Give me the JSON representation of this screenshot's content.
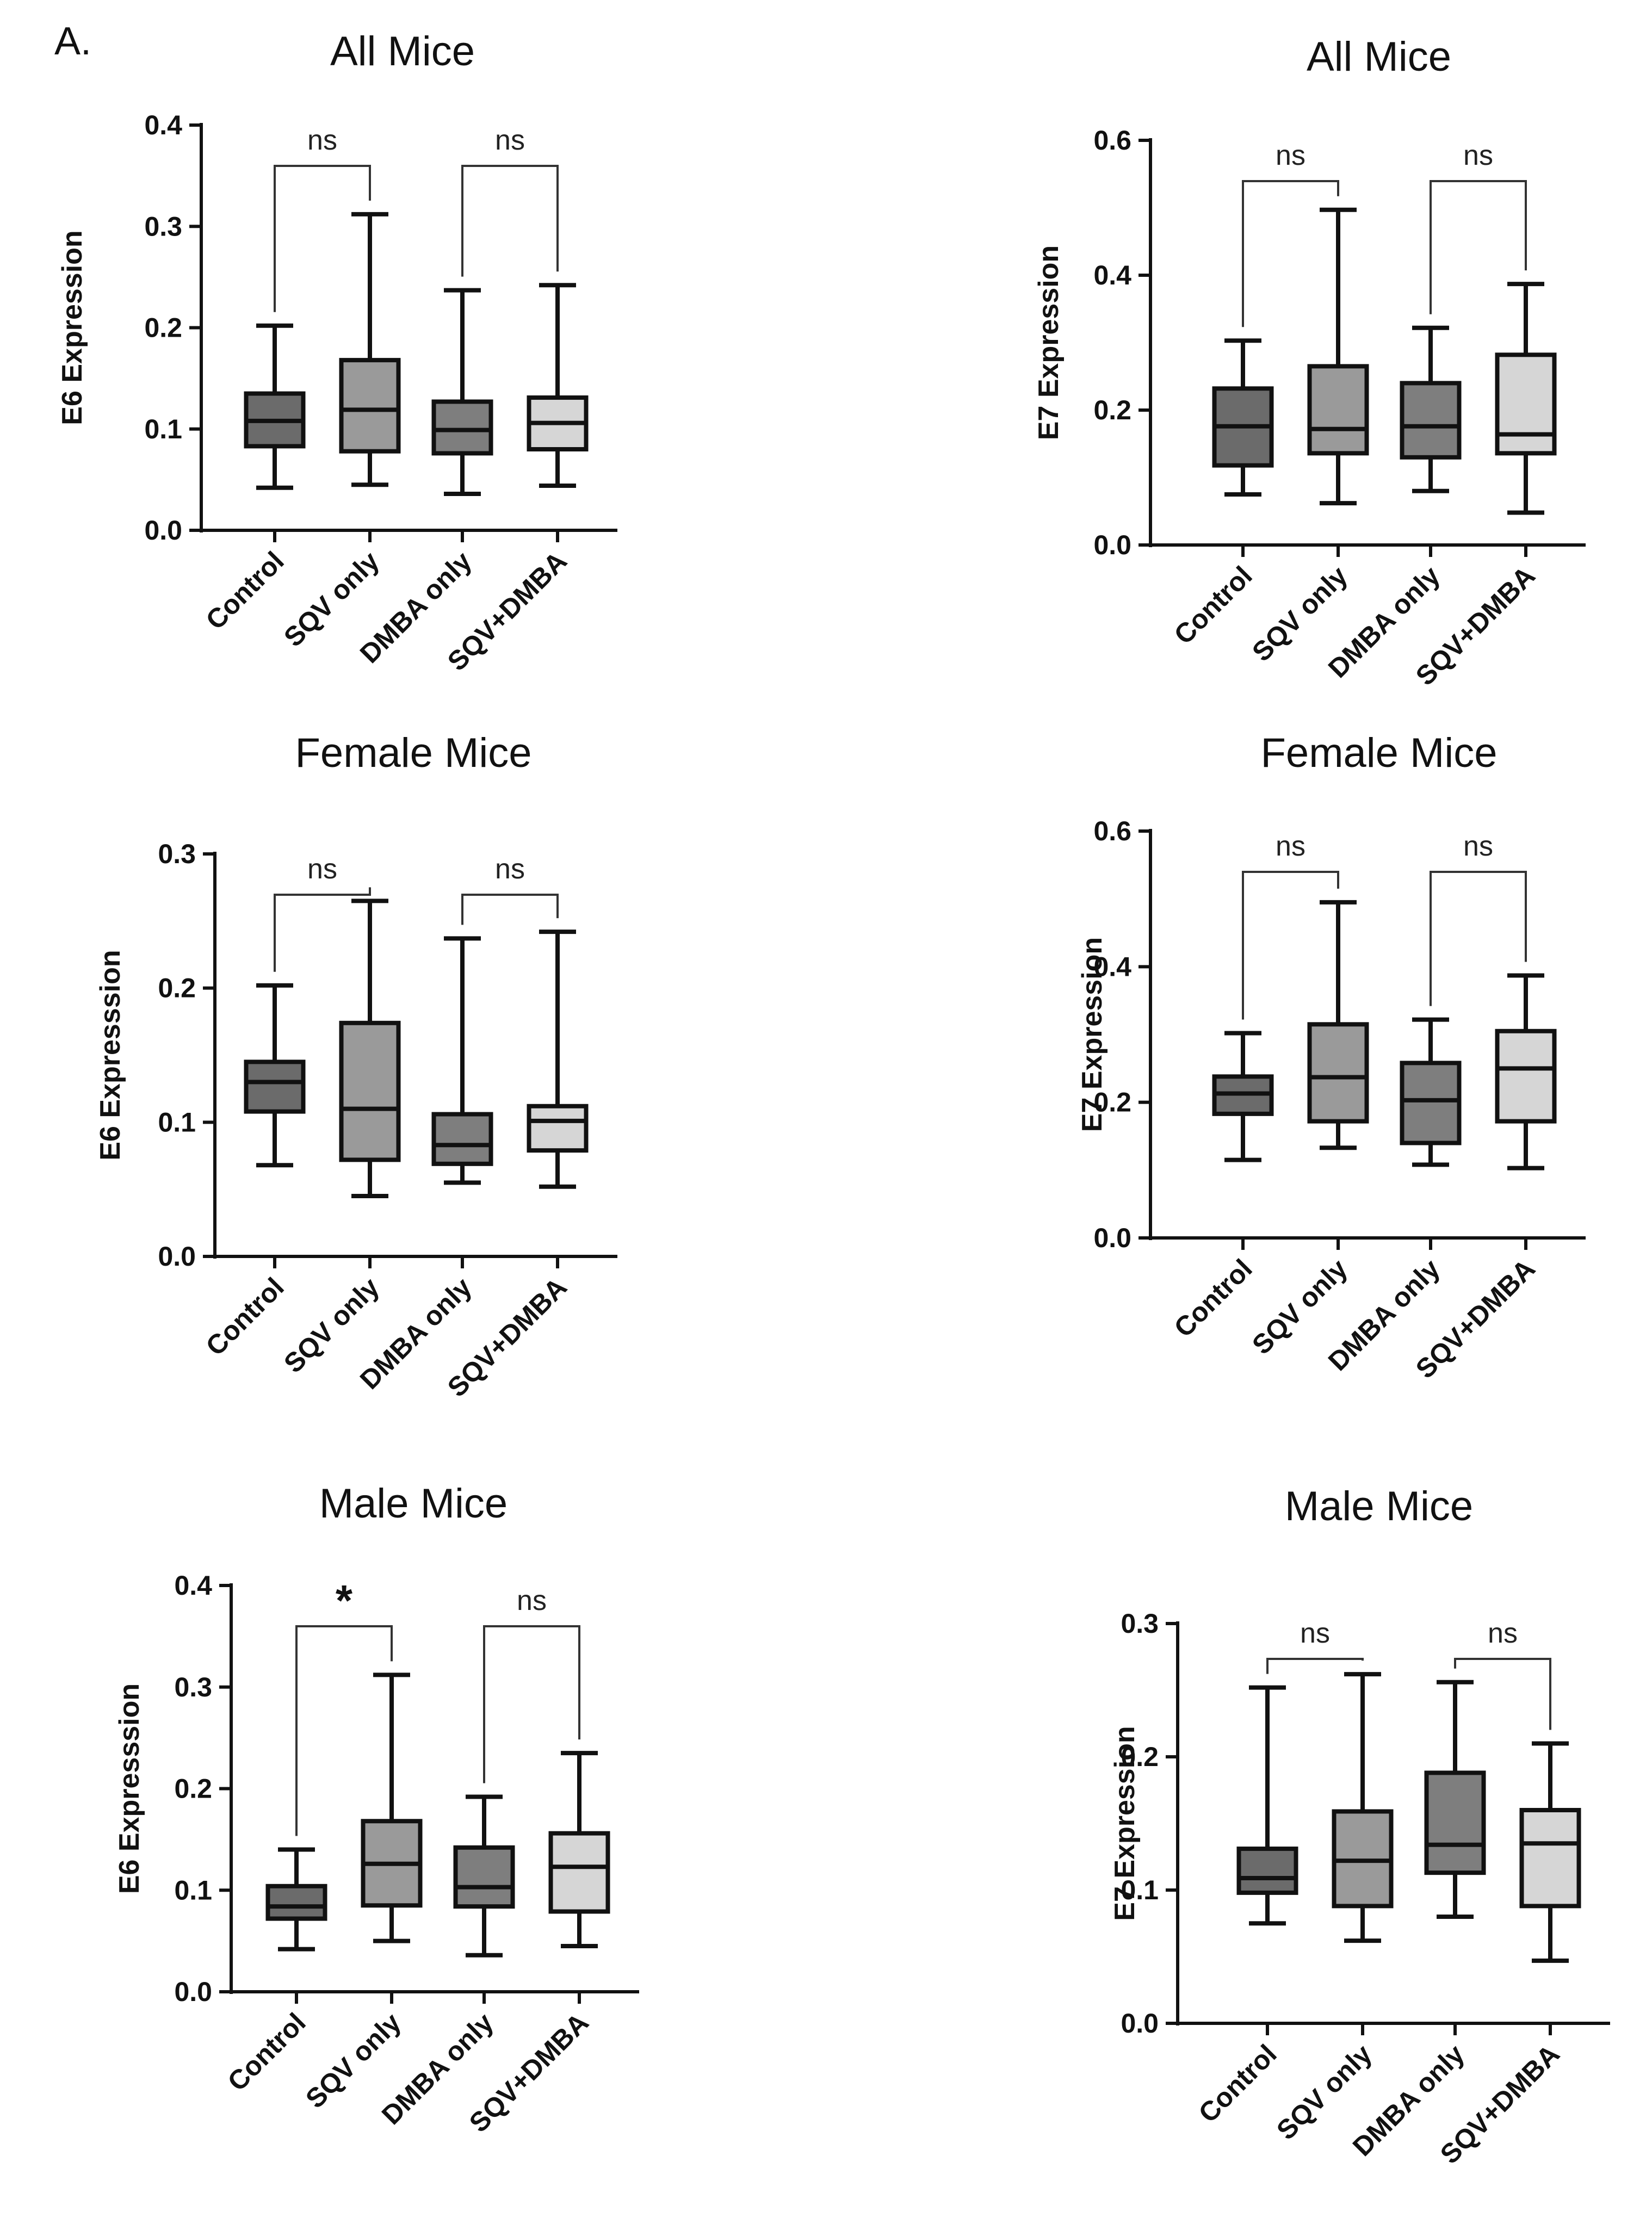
{
  "figure_label": "A.",
  "chart_data": [
    {
      "type": "box",
      "title": "All Mice",
      "ylabel": "E6 Expression",
      "ylim": [
        0,
        0.4
      ],
      "yticks": [
        "0.0",
        "0.1",
        "0.2",
        "0.3",
        "0.4"
      ],
      "categories": [
        "Control",
        "SQV only",
        "DMBA only",
        "SQV+DMBA"
      ],
      "colors": [
        "#6b6b6b",
        "#9a9a9a",
        "#7e7e7e",
        "#d6d6d6"
      ],
      "boxes": [
        {
          "min": 0.042,
          "q1": 0.083,
          "median": 0.108,
          "q3": 0.135,
          "max": 0.202
        },
        {
          "min": 0.045,
          "q1": 0.078,
          "median": 0.119,
          "q3": 0.168,
          "max": 0.312
        },
        {
          "min": 0.036,
          "q1": 0.076,
          "median": 0.099,
          "q3": 0.127,
          "max": 0.237
        },
        {
          "min": 0.044,
          "q1": 0.08,
          "median": 0.106,
          "q3": 0.131,
          "max": 0.242
        }
      ],
      "comparisons": [
        {
          "from": 0,
          "to": 1,
          "label": "ns"
        },
        {
          "from": 2,
          "to": 3,
          "label": "ns"
        }
      ]
    },
    {
      "type": "box",
      "title": "All Mice",
      "ylabel": "E7 Expression",
      "ylim": [
        0,
        0.6
      ],
      "yticks": [
        "0.0",
        "0.2",
        "0.4",
        "0.6"
      ],
      "categories": [
        "Control",
        "SQV only",
        "DMBA only",
        "SQV+DMBA"
      ],
      "colors": [
        "#6b6b6b",
        "#9a9a9a",
        "#7e7e7e",
        "#d6d6d6"
      ],
      "boxes": [
        {
          "min": 0.075,
          "q1": 0.118,
          "median": 0.176,
          "q3": 0.232,
          "max": 0.303
        },
        {
          "min": 0.062,
          "q1": 0.136,
          "median": 0.172,
          "q3": 0.265,
          "max": 0.497
        },
        {
          "min": 0.08,
          "q1": 0.13,
          "median": 0.176,
          "q3": 0.24,
          "max": 0.322
        },
        {
          "min": 0.048,
          "q1": 0.136,
          "median": 0.164,
          "q3": 0.282,
          "max": 0.387
        }
      ],
      "comparisons": [
        {
          "from": 0,
          "to": 1,
          "label": "ns"
        },
        {
          "from": 2,
          "to": 3,
          "label": "ns"
        }
      ]
    },
    {
      "type": "box",
      "title": "Female Mice",
      "ylabel": "E6 Expresssion",
      "ylim": [
        0,
        0.3
      ],
      "yticks": [
        "0.0",
        "0.1",
        "0.2",
        "0.3"
      ],
      "categories": [
        "Control",
        "SQV only",
        "DMBA only",
        "SQV+DMBA"
      ],
      "colors": [
        "#6b6b6b",
        "#9a9a9a",
        "#7e7e7e",
        "#d6d6d6"
      ],
      "boxes": [
        {
          "min": 0.068,
          "q1": 0.108,
          "median": 0.13,
          "q3": 0.145,
          "max": 0.202
        },
        {
          "min": 0.045,
          "q1": 0.072,
          "median": 0.11,
          "q3": 0.174,
          "max": 0.265
        },
        {
          "min": 0.055,
          "q1": 0.069,
          "median": 0.083,
          "q3": 0.106,
          "max": 0.237
        },
        {
          "min": 0.052,
          "q1": 0.079,
          "median": 0.101,
          "q3": 0.112,
          "max": 0.242
        }
      ],
      "comparisons": [
        {
          "from": 0,
          "to": 1,
          "label": "ns"
        },
        {
          "from": 2,
          "to": 3,
          "label": "ns"
        }
      ]
    },
    {
      "type": "box",
      "title": "Female Mice",
      "ylabel": "E7 Expression",
      "ylim": [
        0,
        0.6
      ],
      "yticks": [
        "0.0",
        "0.2",
        "0.4",
        "0.6"
      ],
      "categories": [
        "Control",
        "SQV only",
        "DMBA only",
        "SQV+DMBA"
      ],
      "colors": [
        "#6b6b6b",
        "#9a9a9a",
        "#7e7e7e",
        "#d6d6d6"
      ],
      "boxes": [
        {
          "min": 0.115,
          "q1": 0.183,
          "median": 0.213,
          "q3": 0.238,
          "max": 0.302
        },
        {
          "min": 0.133,
          "q1": 0.172,
          "median": 0.237,
          "q3": 0.315,
          "max": 0.495
        },
        {
          "min": 0.108,
          "q1": 0.14,
          "median": 0.203,
          "q3": 0.258,
          "max": 0.322
        },
        {
          "min": 0.103,
          "q1": 0.172,
          "median": 0.25,
          "q3": 0.305,
          "max": 0.387
        }
      ],
      "comparisons": [
        {
          "from": 0,
          "to": 1,
          "label": "ns"
        },
        {
          "from": 2,
          "to": 3,
          "label": "ns"
        }
      ]
    },
    {
      "type": "box",
      "title": "Male Mice",
      "ylabel": "E6 Expresssion",
      "ylim": [
        0,
        0.4
      ],
      "yticks": [
        "0.0",
        "0.1",
        "0.2",
        "0.3",
        "0.4"
      ],
      "categories": [
        "Control",
        "SQV only",
        "DMBA only",
        "SQV+DMBA"
      ],
      "colors": [
        "#6b6b6b",
        "#9a9a9a",
        "#7e7e7e",
        "#d6d6d6"
      ],
      "boxes": [
        {
          "min": 0.042,
          "q1": 0.072,
          "median": 0.084,
          "q3": 0.104,
          "max": 0.14
        },
        {
          "min": 0.05,
          "q1": 0.085,
          "median": 0.126,
          "q3": 0.168,
          "max": 0.312
        },
        {
          "min": 0.036,
          "q1": 0.084,
          "median": 0.103,
          "q3": 0.142,
          "max": 0.192
        },
        {
          "min": 0.045,
          "q1": 0.079,
          "median": 0.123,
          "q3": 0.156,
          "max": 0.235
        }
      ],
      "comparisons": [
        {
          "from": 0,
          "to": 1,
          "label": "*"
        },
        {
          "from": 2,
          "to": 3,
          "label": "ns"
        }
      ]
    },
    {
      "type": "box",
      "title": "Male Mice",
      "ylabel": "E7 Expression",
      "ylim": [
        0,
        0.3
      ],
      "yticks": [
        "0.0",
        "0.1",
        "0.2",
        "0.3"
      ],
      "categories": [
        "Control",
        "SQV only",
        "DMBA only",
        "SQV+DMBA"
      ],
      "colors": [
        "#6b6b6b",
        "#9a9a9a",
        "#7e7e7e",
        "#d6d6d6"
      ],
      "boxes": [
        {
          "min": 0.075,
          "q1": 0.098,
          "median": 0.109,
          "q3": 0.131,
          "max": 0.252
        },
        {
          "min": 0.062,
          "q1": 0.088,
          "median": 0.122,
          "q3": 0.159,
          "max": 0.262
        },
        {
          "min": 0.08,
          "q1": 0.113,
          "median": 0.134,
          "q3": 0.188,
          "max": 0.256
        },
        {
          "min": 0.047,
          "q1": 0.088,
          "median": 0.135,
          "q3": 0.16,
          "max": 0.21
        }
      ],
      "comparisons": [
        {
          "from": 0,
          "to": 1,
          "label": "ns"
        },
        {
          "from": 2,
          "to": 3,
          "label": "ns"
        }
      ]
    }
  ]
}
